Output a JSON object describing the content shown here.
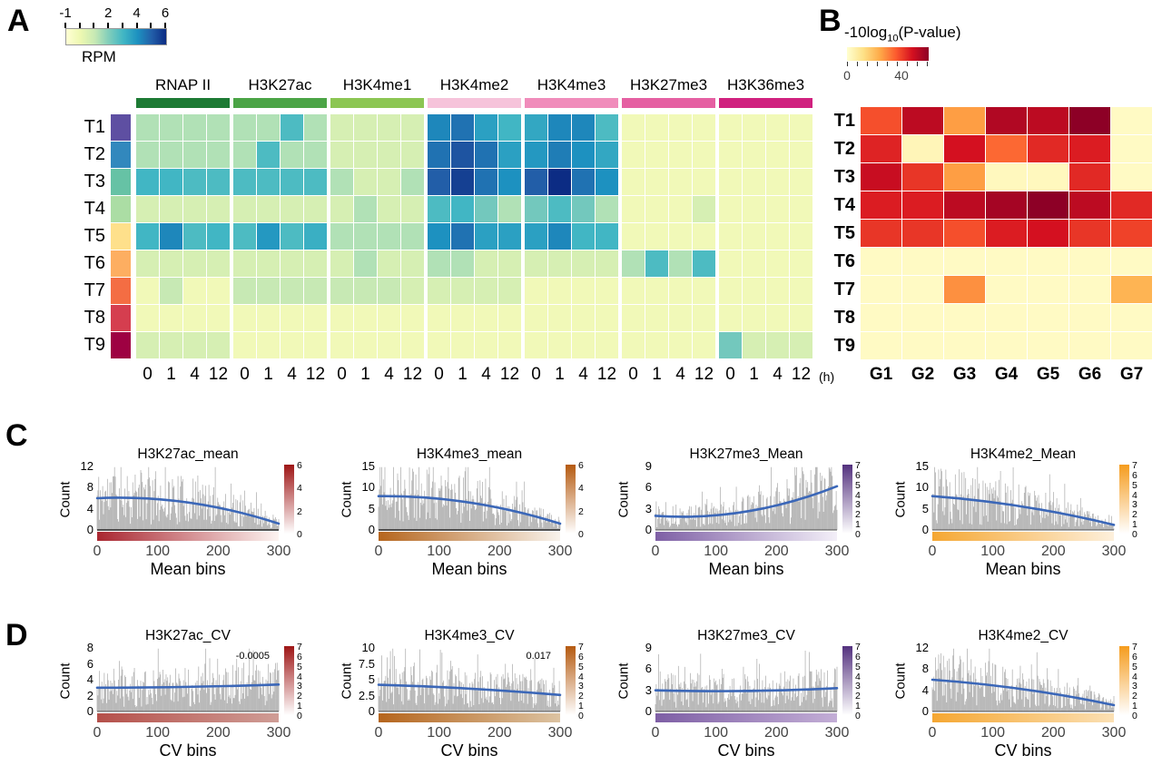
{
  "chart_data": {
    "panelA": {
      "label": "A",
      "type": "heatmap",
      "colorbar": {
        "label": "RPM",
        "ticks": [
          "-1",
          "2",
          "4",
          "6"
        ],
        "vmin": -1,
        "vmax": 6,
        "stops": [
          "#ffffd4",
          "#edf8b1",
          "#c7e9b4",
          "#7fcdbb",
          "#41b6c4",
          "#1d91c0",
          "#225ea8",
          "#0c2c84"
        ]
      },
      "groups": [
        {
          "name": "RNAP II",
          "color": "#1d7a34"
        },
        {
          "name": "H3K27ac",
          "color": "#4ba446"
        },
        {
          "name": "H3K4me1",
          "color": "#8cc653"
        },
        {
          "name": "H3K4me2",
          "color": "#f6c3da"
        },
        {
          "name": "H3K4me3",
          "color": "#f08cbb"
        },
        {
          "name": "H3K27me3",
          "color": "#e55fa2"
        },
        {
          "name": "H3K36me3",
          "color": "#d0217f"
        }
      ],
      "timepoints": [
        "0",
        "1",
        "4",
        "12"
      ],
      "time_unit": "(h)",
      "rows": [
        {
          "name": "T1",
          "swatch": "#5e4fa2",
          "values": [
            1.3,
            1.3,
            1.3,
            1.3,
            1.3,
            1.3,
            2.8,
            1.3,
            0.6,
            0.6,
            0.6,
            0.6,
            4.2,
            4.6,
            3.6,
            3.0,
            3.4,
            4.2,
            4.2,
            2.8,
            -0.2,
            -0.2,
            -0.2,
            -0.2,
            -0.2,
            -0.2,
            -0.2,
            -0.2
          ]
        },
        {
          "name": "T2",
          "swatch": "#3288bd",
          "values": [
            1.3,
            1.3,
            1.3,
            1.3,
            1.3,
            2.8,
            1.3,
            1.3,
            0.6,
            0.6,
            0.6,
            0.6,
            4.6,
            5.2,
            4.6,
            3.6,
            3.8,
            4.4,
            4.0,
            3.4,
            -0.2,
            -0.2,
            -0.2,
            -0.2,
            -0.2,
            -0.2,
            -0.2,
            -0.2
          ]
        },
        {
          "name": "T3",
          "swatch": "#66c2a5",
          "values": [
            3.0,
            3.0,
            2.8,
            2.8,
            2.8,
            2.8,
            2.8,
            2.8,
            1.3,
            0.6,
            0.6,
            1.3,
            5.0,
            5.6,
            4.6,
            4.0,
            5.0,
            6.0,
            4.6,
            4.0,
            -0.2,
            -0.2,
            -0.2,
            -0.2,
            -0.2,
            -0.2,
            -0.2,
            -0.2
          ]
        },
        {
          "name": "T4",
          "swatch": "#abdda4",
          "values": [
            0.6,
            0.6,
            0.6,
            0.6,
            0.6,
            0.6,
            0.6,
            0.6,
            0.6,
            1.3,
            0.6,
            0.6,
            2.8,
            3.0,
            2.2,
            1.3,
            2.2,
            2.8,
            2.2,
            1.3,
            -0.2,
            -0.2,
            -0.2,
            0.6,
            -0.2,
            -0.2,
            -0.2,
            -0.2
          ]
        },
        {
          "name": "T5",
          "swatch": "#fee08b",
          "values": [
            3.0,
            4.2,
            2.8,
            3.0,
            2.8,
            3.8,
            2.8,
            3.2,
            1.3,
            1.3,
            1.3,
            1.3,
            4.0,
            4.6,
            3.6,
            3.6,
            3.6,
            4.2,
            3.0,
            3.0,
            -0.2,
            -0.2,
            -0.2,
            -0.2,
            -0.2,
            -0.2,
            -0.2,
            -0.2
          ]
        },
        {
          "name": "T6",
          "swatch": "#fdae61",
          "values": [
            0.6,
            0.6,
            0.6,
            0.6,
            0.6,
            0.6,
            0.6,
            0.6,
            0.6,
            1.3,
            0.6,
            0.6,
            1.3,
            1.3,
            0.6,
            0.6,
            0.6,
            0.6,
            0.6,
            0.6,
            1.3,
            2.8,
            1.3,
            2.8,
            -0.2,
            -0.2,
            -0.2,
            -0.2
          ]
        },
        {
          "name": "T7",
          "swatch": "#f46d43",
          "values": [
            -0.2,
            1.0,
            -0.2,
            -0.2,
            1.0,
            1.0,
            1.0,
            1.0,
            1.0,
            1.0,
            1.0,
            0.6,
            0.6,
            0.6,
            0.6,
            0.6,
            -0.2,
            -0.2,
            -0.2,
            -0.2,
            -0.2,
            -0.2,
            -0.2,
            -0.2,
            -0.2,
            -0.2,
            -0.2,
            -0.2
          ]
        },
        {
          "name": "T8",
          "swatch": "#d53e4f",
          "values": [
            -0.2,
            -0.2,
            -0.2,
            -0.2,
            -0.2,
            -0.2,
            -0.2,
            -0.2,
            -0.2,
            -0.2,
            -0.2,
            -0.2,
            -0.2,
            -0.2,
            -0.2,
            -0.2,
            -0.2,
            -0.2,
            -0.2,
            -0.2,
            -0.2,
            -0.2,
            -0.2,
            -0.2,
            -0.2,
            -0.2,
            -0.2,
            -0.2
          ]
        },
        {
          "name": "T9",
          "swatch": "#9e0142",
          "values": [
            0.6,
            0.6,
            0.6,
            0.6,
            -0.2,
            -0.2,
            -0.2,
            -0.2,
            -0.2,
            -0.2,
            -0.2,
            -0.2,
            -0.2,
            -0.2,
            -0.2,
            -0.2,
            -0.2,
            -0.2,
            -0.2,
            -0.2,
            -0.2,
            -0.2,
            -0.2,
            -0.2,
            2.2,
            0.6,
            0.6,
            0.6
          ]
        }
      ]
    },
    "panelB": {
      "label": "B",
      "type": "heatmap",
      "colorbar": {
        "title_prefix": "-10log",
        "title_sub": "10",
        "title_suffix": "(P-value)",
        "ticks": [
          "0",
          "40"
        ],
        "vmin": 0,
        "vmax": 60,
        "stops": [
          "#ffffd0",
          "#fee187",
          "#feab49",
          "#fc5b2e",
          "#d41020",
          "#8d0026"
        ]
      },
      "columns": [
        "G1",
        "G2",
        "G3",
        "G4",
        "G5",
        "G6",
        "G7"
      ],
      "rows": [
        {
          "name": "T1",
          "values": [
            38,
            52,
            26,
            54,
            52,
            60,
            2
          ]
        },
        {
          "name": "T2",
          "values": [
            45,
            4,
            48,
            34,
            44,
            46,
            2
          ]
        },
        {
          "name": "T3",
          "values": [
            50,
            42,
            26,
            3,
            3,
            44,
            2
          ]
        },
        {
          "name": "T4",
          "values": [
            46,
            46,
            52,
            56,
            60,
            52,
            44
          ]
        },
        {
          "name": "T5",
          "values": [
            42,
            42,
            38,
            46,
            48,
            42,
            40
          ]
        },
        {
          "name": "T6",
          "values": [
            2,
            2,
            2,
            2,
            2,
            2,
            2
          ]
        },
        {
          "name": "T7",
          "values": [
            2,
            2,
            28,
            2,
            2,
            2,
            22
          ]
        },
        {
          "name": "T8",
          "values": [
            2,
            2,
            2,
            2,
            2,
            2,
            2
          ]
        },
        {
          "name": "T9",
          "values": [
            2,
            2,
            2,
            2,
            2,
            2,
            2
          ]
        }
      ]
    },
    "panelC": {
      "label": "C",
      "type": "bar",
      "ylabel": "Count",
      "xlabel": "Mean bins",
      "xticks": [
        "0",
        "100",
        "200",
        "300"
      ],
      "xlim": [
        0,
        300
      ],
      "plots": [
        {
          "title": "H3K27ac_mean",
          "ymax": 12,
          "yticks": [
            "12",
            "8",
            "4",
            "0"
          ],
          "cbar": {
            "color": "#9e1515",
            "ticks": [
              "6",
              "4",
              "2",
              "0"
            ]
          },
          "strip": [
            "#a92630",
            "#fdf4f1"
          ],
          "trend": {
            "start": 6.0,
            "mid": 5.2,
            "end": 1.2
          },
          "seed": 11,
          "axis_line": true
        },
        {
          "title": "H3K4me3_mean",
          "ymax": 15,
          "yticks": [
            "15",
            "10",
            "5",
            "0"
          ],
          "cbar": {
            "color": "#b55a10",
            "ticks": [
              "6",
              "4",
              "2",
              "0"
            ]
          },
          "strip": [
            "#b5651d",
            "#f8f3ec"
          ],
          "trend": {
            "start": 8.0,
            "mid": 6.5,
            "end": 1.5
          },
          "seed": 12,
          "axis_line": true
        },
        {
          "title": "H3K27me3_Mean",
          "ymax": 9,
          "yticks": [
            "9",
            "6",
            "3",
            "0"
          ],
          "cbar": {
            "color": "#53317e",
            "ticks": [
              "7",
              "6",
              "5",
              "4",
              "3",
              "2",
              "1",
              "0"
            ]
          },
          "strip": [
            "#7e5fa5",
            "#f3eff8"
          ],
          "trend": {
            "start": 2.0,
            "mid": 2.6,
            "end": 6.2
          },
          "seed": 13,
          "axis_line": false
        },
        {
          "title": "H3K4me2_Mean",
          "ymax": 15,
          "yticks": [
            "15",
            "10",
            "5",
            "0"
          ],
          "cbar": {
            "color": "#f59c1e",
            "ticks": [
              "7",
              "6",
              "5",
              "4",
              "3",
              "2",
              "1",
              "0"
            ]
          },
          "strip": [
            "#f5a732",
            "#fdf0dc"
          ],
          "trend": {
            "start": 8.0,
            "mid": 5.5,
            "end": 1.2
          },
          "seed": 14,
          "axis_line": false
        }
      ]
    },
    "panelD": {
      "label": "D",
      "type": "bar",
      "ylabel": "Count",
      "xlabel": "CV bins",
      "xticks": [
        "0",
        "100",
        "200",
        "300"
      ],
      "xlim": [
        0,
        300
      ],
      "plots": [
        {
          "title": "H3K27ac_CV",
          "ymax": 8,
          "yticks": [
            "8",
            "6",
            "4",
            "2",
            "0"
          ],
          "cbar": {
            "color": "#9e1515",
            "ticks": [
              "7",
              "6",
              "5",
              "4",
              "3",
              "2",
              "1",
              "0"
            ]
          },
          "strip": [
            "#b5504a",
            "#cf9d96"
          ],
          "trend": {
            "start": 3.0,
            "mid": 3.1,
            "end": 3.4
          },
          "seed": 21,
          "axis_line": false,
          "annotation": "-0.0005"
        },
        {
          "title": "H3K4me3_CV",
          "ymax": 10,
          "yticks": [
            "10",
            "7.5",
            "5",
            "2.5",
            "0"
          ],
          "cbar": {
            "color": "#b55a10",
            "ticks": [
              "7",
              "6",
              "5",
              "4",
              "3",
              "2",
              "1",
              "0"
            ]
          },
          "strip": [
            "#b5651d",
            "#dcc3a2"
          ],
          "trend": {
            "start": 4.2,
            "mid": 3.6,
            "end": 2.6
          },
          "seed": 22,
          "axis_line": false,
          "annotation": "0.017"
        },
        {
          "title": "H3K27me3_CV",
          "ymax": 9,
          "yticks": [
            "9",
            "6",
            "3",
            "0"
          ],
          "cbar": {
            "color": "#53317e",
            "ticks": [
              "7",
              "6",
              "5",
              "4",
              "3",
              "2",
              "1",
              "0"
            ]
          },
          "strip": [
            "#7e5fa5",
            "#c3aed6"
          ],
          "trend": {
            "start": 3.0,
            "mid": 2.9,
            "end": 3.3
          },
          "seed": 23,
          "axis_line": false
        },
        {
          "title": "H3K4me2_CV",
          "ymax": 12,
          "yticks": [
            "12",
            "8",
            "4",
            "0"
          ],
          "cbar": {
            "color": "#f59c1e",
            "ticks": [
              "7",
              "6",
              "5",
              "4",
              "3",
              "2",
              "1",
              "0"
            ]
          },
          "strip": [
            "#f5a732",
            "#fbe0b4"
          ],
          "trend": {
            "start": 6.0,
            "mid": 4.2,
            "end": 1.2
          },
          "seed": 24,
          "axis_line": false
        }
      ]
    }
  }
}
